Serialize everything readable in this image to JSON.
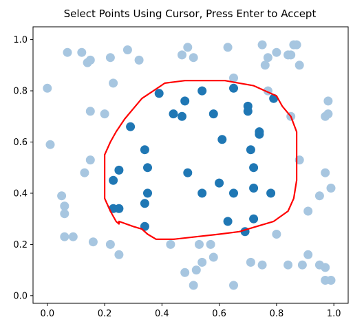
{
  "window": {
    "title": "Select Points Using Cursor, Press Enter to Accept"
  },
  "chart_data": {
    "type": "scatter",
    "title": "Select Points Using Cursor, Press Enter to Accept",
    "xlabel": "",
    "ylabel": "",
    "xlim": [
      -0.05,
      1.05
    ],
    "ylim": [
      -0.03,
      1.05
    ],
    "x_ticks": [
      {
        "value": 0.0,
        "label": "0.0"
      },
      {
        "value": 0.2,
        "label": "0.2"
      },
      {
        "value": 0.4,
        "label": "0.4"
      },
      {
        "value": 0.6,
        "label": "0.6"
      },
      {
        "value": 0.8,
        "label": "0.8"
      },
      {
        "value": 1.0,
        "label": "1.0"
      }
    ],
    "y_ticks": [
      {
        "value": 0.0,
        "label": "0.0"
      },
      {
        "value": 0.2,
        "label": "0.2"
      },
      {
        "value": 0.4,
        "label": "0.4"
      },
      {
        "value": 0.6,
        "label": "0.6"
      },
      {
        "value": 0.8,
        "label": "0.8"
      },
      {
        "value": 1.0,
        "label": "1.0"
      }
    ],
    "grid": false,
    "colors": {
      "selected": "#1f77b4",
      "unselected": "#a7c6e0",
      "lasso": "#ff0000"
    },
    "series": [
      {
        "role": "unselected",
        "points": [
          [
            0.07,
            0.95
          ],
          [
            0.12,
            0.95
          ],
          [
            0.14,
            0.91
          ],
          [
            0.15,
            0.92
          ],
          [
            0.22,
            0.93
          ],
          [
            0.28,
            0.96
          ],
          [
            0.32,
            0.92
          ],
          [
            0.47,
            0.94
          ],
          [
            0.49,
            0.97
          ],
          [
            0.51,
            0.93
          ],
          [
            0.63,
            0.97
          ],
          [
            0.65,
            0.85
          ],
          [
            0.75,
            0.98
          ],
          [
            0.77,
            0.93
          ],
          [
            0.76,
            0.9
          ],
          [
            0.8,
            0.95
          ],
          [
            0.84,
            0.94
          ],
          [
            0.85,
            0.94
          ],
          [
            0.86,
            0.98
          ],
          [
            0.87,
            0.98
          ],
          [
            0.88,
            0.9
          ],
          [
            0.0,
            0.81
          ],
          [
            0.23,
            0.83
          ],
          [
            0.77,
            0.8
          ],
          [
            0.98,
            0.76
          ],
          [
            0.15,
            0.72
          ],
          [
            0.2,
            0.71
          ],
          [
            0.85,
            0.7
          ],
          [
            0.97,
            0.7
          ],
          [
            0.98,
            0.71
          ],
          [
            0.01,
            0.59
          ],
          [
            0.15,
            0.53
          ],
          [
            0.13,
            0.48
          ],
          [
            0.88,
            0.53
          ],
          [
            0.97,
            0.48
          ],
          [
            0.05,
            0.39
          ],
          [
            0.95,
            0.39
          ],
          [
            0.99,
            0.42
          ],
          [
            0.06,
            0.35
          ],
          [
            0.06,
            0.32
          ],
          [
            0.91,
            0.33
          ],
          [
            0.06,
            0.23
          ],
          [
            0.09,
            0.23
          ],
          [
            0.16,
            0.21
          ],
          [
            0.22,
            0.2
          ],
          [
            0.25,
            0.16
          ],
          [
            0.43,
            0.2
          ],
          [
            0.53,
            0.2
          ],
          [
            0.57,
            0.2
          ],
          [
            0.58,
            0.15
          ],
          [
            0.54,
            0.13
          ],
          [
            0.71,
            0.13
          ],
          [
            0.75,
            0.12
          ],
          [
            0.8,
            0.24
          ],
          [
            0.84,
            0.12
          ],
          [
            0.89,
            0.12
          ],
          [
            0.91,
            0.16
          ],
          [
            0.95,
            0.12
          ],
          [
            0.97,
            0.11
          ],
          [
            0.48,
            0.09
          ],
          [
            0.52,
            0.1
          ],
          [
            0.51,
            0.04
          ],
          [
            0.65,
            0.04
          ],
          [
            0.97,
            0.06
          ],
          [
            0.99,
            0.06
          ]
        ]
      },
      {
        "role": "selected",
        "points": [
          [
            0.39,
            0.79
          ],
          [
            0.48,
            0.76
          ],
          [
            0.54,
            0.8
          ],
          [
            0.65,
            0.81
          ],
          [
            0.7,
            0.74
          ],
          [
            0.7,
            0.72
          ],
          [
            0.79,
            0.77
          ],
          [
            0.44,
            0.71
          ],
          [
            0.47,
            0.7
          ],
          [
            0.58,
            0.71
          ],
          [
            0.29,
            0.66
          ],
          [
            0.74,
            0.63
          ],
          [
            0.74,
            0.64
          ],
          [
            0.61,
            0.61
          ],
          [
            0.34,
            0.57
          ],
          [
            0.71,
            0.57
          ],
          [
            0.25,
            0.49
          ],
          [
            0.35,
            0.5
          ],
          [
            0.49,
            0.48
          ],
          [
            0.72,
            0.5
          ],
          [
            0.23,
            0.45
          ],
          [
            0.6,
            0.44
          ],
          [
            0.35,
            0.4
          ],
          [
            0.54,
            0.4
          ],
          [
            0.65,
            0.4
          ],
          [
            0.72,
            0.42
          ],
          [
            0.78,
            0.4
          ],
          [
            0.34,
            0.36
          ],
          [
            0.23,
            0.34
          ],
          [
            0.25,
            0.34
          ],
          [
            0.63,
            0.29
          ],
          [
            0.72,
            0.3
          ],
          [
            0.34,
            0.27
          ],
          [
            0.69,
            0.25
          ]
        ]
      }
    ],
    "lasso_path": [
      [
        0.55,
        0.84
      ],
      [
        0.62,
        0.84
      ],
      [
        0.67,
        0.83
      ],
      [
        0.72,
        0.82
      ],
      [
        0.76,
        0.8
      ],
      [
        0.8,
        0.78
      ],
      [
        0.82,
        0.74
      ],
      [
        0.85,
        0.7
      ],
      [
        0.87,
        0.64
      ],
      [
        0.87,
        0.58
      ],
      [
        0.87,
        0.52
      ],
      [
        0.87,
        0.45
      ],
      [
        0.86,
        0.38
      ],
      [
        0.84,
        0.33
      ],
      [
        0.79,
        0.29
      ],
      [
        0.73,
        0.27
      ],
      [
        0.67,
        0.25
      ],
      [
        0.6,
        0.24
      ],
      [
        0.52,
        0.23
      ],
      [
        0.44,
        0.22
      ],
      [
        0.38,
        0.22
      ],
      [
        0.35,
        0.24
      ],
      [
        0.33,
        0.26
      ],
      [
        0.3,
        0.27
      ],
      [
        0.25,
        0.29
      ],
      [
        0.25,
        0.28
      ],
      [
        0.24,
        0.29
      ],
      [
        0.22,
        0.33
      ],
      [
        0.2,
        0.38
      ],
      [
        0.2,
        0.44
      ],
      [
        0.2,
        0.5
      ],
      [
        0.2,
        0.55
      ],
      [
        0.22,
        0.6
      ],
      [
        0.24,
        0.64
      ],
      [
        0.27,
        0.69
      ],
      [
        0.3,
        0.73
      ],
      [
        0.33,
        0.77
      ],
      [
        0.37,
        0.8
      ],
      [
        0.41,
        0.83
      ],
      [
        0.48,
        0.84
      ],
      [
        0.55,
        0.84
      ]
    ]
  }
}
